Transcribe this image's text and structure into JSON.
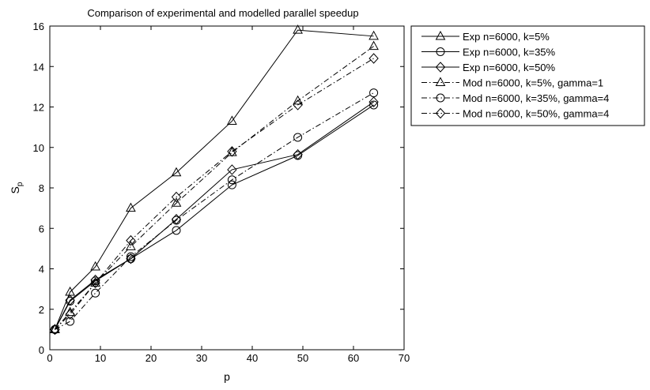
{
  "chart_data": {
    "type": "line",
    "title": "Comparison of experimental and modelled parallel speedup",
    "xlabel": "p",
    "ylabel_main": "S",
    "ylabel_sub": "p",
    "xlim": [
      0,
      70
    ],
    "ylim": [
      0,
      16
    ],
    "xticks": [
      0,
      10,
      20,
      30,
      40,
      50,
      60,
      70
    ],
    "yticks": [
      0,
      2,
      4,
      6,
      8,
      10,
      12,
      14,
      16
    ],
    "grid": false,
    "legend_position": "outside-right-top",
    "x": [
      1,
      4,
      9,
      16,
      25,
      36,
      49,
      64
    ],
    "series": [
      {
        "name": "Exp n=6000, k=5%",
        "marker": "triangle",
        "dash": "solid",
        "values": [
          1.0,
          2.85,
          4.1,
          7.0,
          8.75,
          11.3,
          15.8,
          15.5
        ]
      },
      {
        "name": "Exp n=6000, k=35%",
        "marker": "circle",
        "dash": "solid",
        "values": [
          1.0,
          2.4,
          3.4,
          4.5,
          5.9,
          8.15,
          9.6,
          12.1
        ]
      },
      {
        "name": "Exp n=6000, k=50%",
        "marker": "diamond",
        "dash": "solid",
        "values": [
          1.0,
          2.45,
          3.45,
          4.5,
          6.45,
          8.9,
          9.65,
          12.25
        ]
      },
      {
        "name": "Mod n=6000, k=5%, gamma=1",
        "marker": "triangle",
        "dash": "dashdot",
        "values": [
          1.0,
          1.85,
          3.3,
          5.1,
          7.25,
          9.75,
          12.3,
          15.0
        ]
      },
      {
        "name": "Mod n=6000, k=35%, gamma=4",
        "marker": "circle",
        "dash": "dashdot",
        "values": [
          1.0,
          1.4,
          2.8,
          4.6,
          6.4,
          8.4,
          10.5,
          12.7
        ]
      },
      {
        "name": "Mod n=6000, k=50%, gamma=4",
        "marker": "diamond",
        "dash": "dashdot",
        "values": [
          1.0,
          1.75,
          3.3,
          5.4,
          7.55,
          9.8,
          12.1,
          14.4
        ]
      }
    ]
  }
}
